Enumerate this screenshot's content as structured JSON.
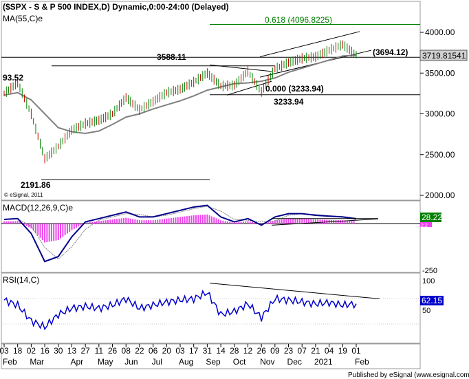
{
  "header": {
    "title": "($SPX - S & P 500 INDEX,D) Dynamic,0:00-24:00 (Delayed)",
    "ma_label": "MA(55,C)e"
  },
  "price_panel": {
    "y_ticks": [
      "4000.00",
      "3500.00",
      "3000.00",
      "2500.00",
      "2000.00"
    ],
    "current_price": "3719.81541",
    "watermark": "© eSignal, 2011",
    "annotations": {
      "fib": "0.618 (4096.8225)",
      "high1": "3588.11",
      "left_label": "93.52",
      "low": "2191.86",
      "channel_level": "(3694.12)",
      "fib0": "0.000 (3233.94)",
      "support": "3233.94"
    },
    "colors": {
      "price_up": "#008000",
      "price_down": "#cc0000",
      "ma": "#808080",
      "fib": "#008000",
      "trend": "#000000"
    }
  },
  "macd_panel": {
    "label": "MACD(12,26,9,C)e",
    "y_ticks": [
      "-250"
    ],
    "badge_value": "28.22",
    "badge_small": "2.2",
    "colors": {
      "macd": "#00008b",
      "signal": "#808080",
      "hist": "#ee44ee",
      "badge": "#008000"
    }
  },
  "rsi_panel": {
    "label": "RSI(14,C)",
    "y_ticks": [
      "100",
      "50"
    ],
    "badge_value": "62.15",
    "colors": {
      "rsi": "#0000cc",
      "badge": "#0000cc"
    }
  },
  "x_axis": {
    "day_labels": [
      "03",
      "18",
      "02",
      "16",
      "30",
      "13",
      "27",
      "11",
      "26",
      "08",
      "22",
      "06",
      "20",
      "03",
      "17",
      "31",
      "14",
      "28",
      "12",
      "26",
      "09",
      "23",
      "07",
      "21",
      "04",
      "19",
      "01"
    ],
    "month_labels": [
      "Feb",
      "Mar",
      "Apr",
      "May",
      "Jun",
      "Jul",
      "Aug",
      "Sep",
      "Oct",
      "Nov",
      "Dec",
      "2021",
      "Feb"
    ]
  },
  "footer": "Published by eSignal (www.esignal.com)",
  "chart_data": {
    "type": "line",
    "title": "($SPX - S & P 500 INDEX,D) Dynamic,0:00-24:00 (Delayed)",
    "period": "Feb 2020 – Feb 2021 (daily)",
    "x": [
      "2020-02-03",
      "2020-02-18",
      "2020-03-02",
      "2020-03-16",
      "2020-03-30",
      "2020-04-13",
      "2020-04-27",
      "2020-05-11",
      "2020-05-26",
      "2020-06-08",
      "2020-06-22",
      "2020-07-06",
      "2020-07-20",
      "2020-08-03",
      "2020-08-17",
      "2020-08-31",
      "2020-09-14",
      "2020-09-28",
      "2020-10-12",
      "2020-10-26",
      "2020-11-09",
      "2020-11-23",
      "2020-12-07",
      "2020-12-21",
      "2021-01-04",
      "2021-01-19",
      "2021-02-01"
    ],
    "series": [
      {
        "name": "SPX",
        "values": [
          3250,
          3380,
          3000,
          2450,
          2600,
          2800,
          2880,
          2920,
          3000,
          3200,
          3050,
          3150,
          3260,
          3300,
          3390,
          3500,
          3340,
          3350,
          3520,
          3270,
          3550,
          3630,
          3680,
          3700,
          3780,
          3850,
          3720
        ]
      },
      {
        "name": "MA(55,C)e",
        "values": [
          3230,
          3260,
          3170,
          3000,
          2830,
          2780,
          2760,
          2790,
          2870,
          2960,
          3000,
          3060,
          3110,
          3160,
          3220,
          3290,
          3330,
          3370,
          3380,
          3400,
          3440,
          3510,
          3560,
          3610,
          3660,
          3710,
          3720
        ]
      },
      {
        "name": "MACD(12,26,9,C)e",
        "values": [
          25,
          30,
          -60,
          -230,
          -200,
          -80,
          10,
          30,
          50,
          70,
          40,
          40,
          60,
          80,
          100,
          110,
          40,
          10,
          30,
          -10,
          40,
          60,
          60,
          50,
          45,
          40,
          28.22
        ]
      },
      {
        "name": "RSI(14,C)",
        "values": [
          68,
          60,
          35,
          25,
          45,
          55,
          58,
          55,
          60,
          70,
          55,
          60,
          65,
          68,
          70,
          80,
          45,
          50,
          62,
          40,
          70,
          68,
          65,
          62,
          64,
          60,
          62.15
        ]
      }
    ],
    "ylim": [
      1900,
      4200
    ],
    "key_levels": {
      "fib_0618": 4096.8225,
      "fib_0": 3233.94,
      "high": 3588.11,
      "low": 2191.86,
      "channel": 3694.12,
      "current": 3719.81541
    },
    "grid": false
  }
}
